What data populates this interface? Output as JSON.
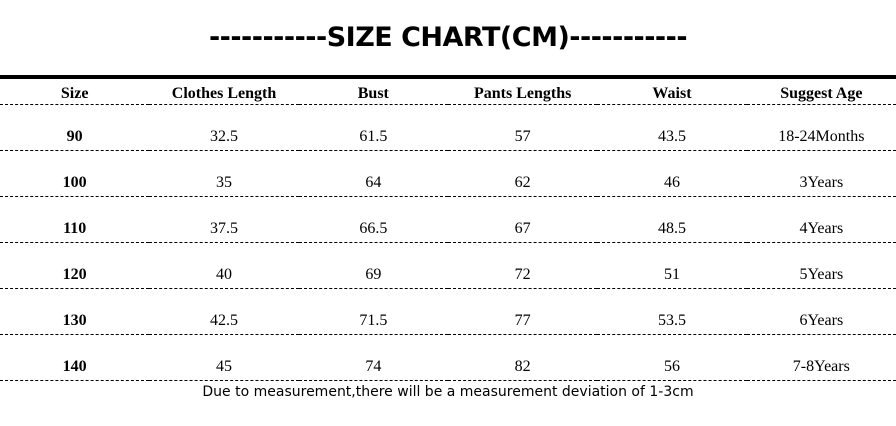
{
  "title": "-----------SIZE CHART(CM)-----------",
  "table": {
    "headers": [
      "Size",
      "Clothes Length",
      "Bust",
      "Pants Lengths",
      "Waist",
      "Suggest Age"
    ],
    "rows": [
      [
        "90",
        "32.5",
        "61.5",
        "57",
        "43.5",
        "18-24Months"
      ],
      [
        "100",
        "35",
        "64",
        "62",
        "46",
        "3Years"
      ],
      [
        "110",
        "37.5",
        "66.5",
        "67",
        "48.5",
        "4Years"
      ],
      [
        "120",
        "40",
        "69",
        "72",
        "51",
        "5Years"
      ],
      [
        "130",
        "42.5",
        "71.5",
        "77",
        "53.5",
        "6Years"
      ],
      [
        "140",
        "45",
        "74",
        "82",
        "56",
        "7-8Years"
      ]
    ]
  },
  "footer": {
    "note": "Due to measurement,there will be a measurement deviation of 1-3cm"
  },
  "colors": {
    "text": "#000000",
    "background": "#ffffff",
    "rule": "#000000"
  }
}
